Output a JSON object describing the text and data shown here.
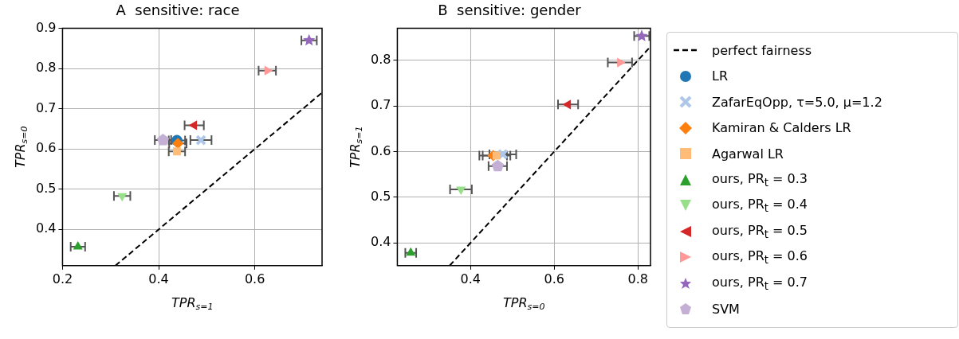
{
  "chart_data": [
    {
      "type": "scatter",
      "title": "A  sensitive: race",
      "xlabel": "TPR$_{s=1}$",
      "ylabel": "TPR$_{s=0}$",
      "xlim": [
        0.2,
        0.74
      ],
      "ylim": [
        0.31,
        0.9
      ],
      "xticks": [
        0.2,
        0.4,
        0.6
      ],
      "yticks": [
        0.4,
        0.5,
        0.6,
        0.7,
        0.8,
        0.9
      ],
      "grid": true,
      "legend": false,
      "series": [
        {
          "type": "line",
          "color": "#000000",
          "line_style": "dashed",
          "marker": "none",
          "x": [
            0.31,
            0.74
          ],
          "values": [
            0.31,
            0.74
          ]
        },
        {
          "color": "#1f77b4",
          "marker": "circle",
          "x": [
            0.438
          ],
          "values": [
            0.621
          ],
          "xerrors": [
            0.017
          ]
        },
        {
          "color": "#aec7e8",
          "marker": "cross",
          "x": [
            0.488
          ],
          "values": [
            0.622
          ],
          "xerrors": [
            0.022
          ]
        },
        {
          "color": "#ff7f0e",
          "marker": "diamond",
          "x": [
            0.44
          ],
          "values": [
            0.614
          ],
          "xerrors": [
            0.018
          ]
        },
        {
          "color": "#ffbb78",
          "marker": "square",
          "x": [
            0.438
          ],
          "values": [
            0.594
          ],
          "xerrors": [
            0.017
          ]
        },
        {
          "color": "#2ca02c",
          "marker": "triangle",
          "x": [
            0.232
          ],
          "values": [
            0.357
          ],
          "xerrors": [
            0.015
          ]
        },
        {
          "color": "#98df8a",
          "marker": "triangle-down",
          "x": [
            0.324
          ],
          "values": [
            0.483
          ],
          "xerrors": [
            0.017
          ]
        },
        {
          "color": "#d62728",
          "marker": "triangle-left",
          "x": [
            0.474
          ],
          "values": [
            0.659
          ],
          "xerrors": [
            0.02
          ]
        },
        {
          "color": "#ff9896",
          "marker": "triangle-right",
          "x": [
            0.626
          ],
          "values": [
            0.795
          ],
          "xerrors": [
            0.018
          ]
        },
        {
          "color": "#9467bd",
          "marker": "star",
          "x": [
            0.713
          ],
          "values": [
            0.87
          ],
          "xerrors": [
            0.016
          ]
        },
        {
          "color": "#c5b0d5",
          "x": [
            0.409
          ],
          "values": [
            0.622
          ],
          "xerrors": [
            0.017
          ]
        }
      ]
    },
    {
      "type": "scatter",
      "title": "B  sensitive: gender",
      "xlabel": "TPR$_{s=0}$",
      "ylabel": "TPR$_{s=1}$",
      "xlim": [
        0.225,
        0.83
      ],
      "ylim": [
        0.35,
        0.87
      ],
      "xticks": [
        0.4,
        0.6,
        0.8
      ],
      "yticks": [
        0.4,
        0.5,
        0.6,
        0.7,
        0.8
      ],
      "grid": true,
      "legend": "right",
      "series": [
        {
          "name": "perfect fairness",
          "type": "line",
          "color": "#000000",
          "line_style": "dashed",
          "marker": "none",
          "x": [
            0.35,
            0.83
          ],
          "values": [
            0.35,
            0.83
          ]
        },
        {
          "name": "LR",
          "color": "#1f77b4",
          "marker": "circle"
        },
        {
          "name": "ZafarEqOpp, τ=5.0, μ=1.2",
          "color": "#aec7e8",
          "marker": "cross",
          "x": [
            0.477
          ],
          "values": [
            0.594
          ],
          "xerrors": [
            0.032
          ]
        },
        {
          "name": "Kamiran & Calders LR",
          "color": "#ff7f0e",
          "marker": "diamond",
          "x": [
            0.454
          ],
          "values": [
            0.591
          ],
          "xerrors": [
            0.033
          ]
        },
        {
          "name": "Agarwal LR",
          "color": "#ffbb78",
          "marker": "square",
          "x": [
            0.462
          ],
          "values": [
            0.591
          ],
          "xerrors": [
            0.033
          ]
        },
        {
          "name": "ours, PR$_{t}$ = 0.3",
          "color": "#2ca02c",
          "marker": "triangle",
          "x": [
            0.257
          ],
          "values": [
            0.378
          ],
          "xerrors": [
            0.013
          ]
        },
        {
          "name": "ours, PR$_{t}$ = 0.4",
          "color": "#98df8a",
          "marker": "triangle-down",
          "x": [
            0.377
          ],
          "values": [
            0.517
          ],
          "xerrors": [
            0.026
          ]
        },
        {
          "name": "ours, PR$_{t}$ = 0.5",
          "color": "#d62728",
          "marker": "triangle-left",
          "x": [
            0.633
          ],
          "values": [
            0.703
          ],
          "xerrors": [
            0.024
          ]
        },
        {
          "name": "ours, PR$_{t}$ = 0.6",
          "color": "#ff9896",
          "marker": "triangle-right",
          "x": [
            0.757
          ],
          "values": [
            0.795
          ],
          "xerrors": [
            0.029
          ]
        },
        {
          "name": "ours, PR$_{t}$ = 0.7",
          "color": "#9467bd",
          "marker": "star",
          "x": [
            0.809
          ],
          "values": [
            0.853
          ],
          "xerrors": [
            0.018
          ]
        },
        {
          "name": "SVM",
          "color": "#c5b0d5",
          "x": [
            0.465
          ],
          "values": [
            0.568
          ],
          "xerrors": [
            0.022
          ]
        }
      ]
    }
  ]
}
